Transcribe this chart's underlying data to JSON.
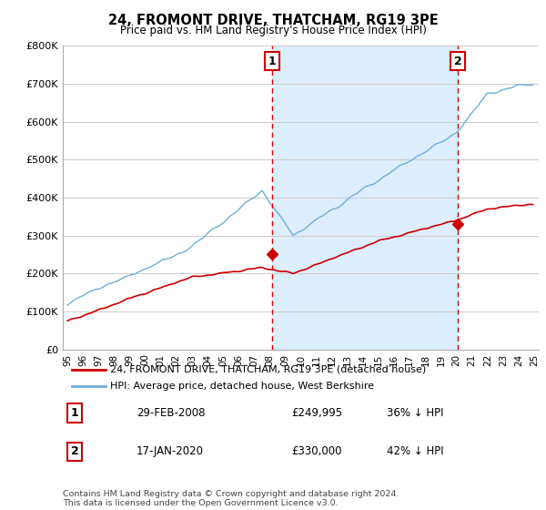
{
  "title": "24, FROMONT DRIVE, THATCHAM, RG19 3PE",
  "subtitle": "Price paid vs. HM Land Registry's House Price Index (HPI)",
  "legend_line1": "24, FROMONT DRIVE, THATCHAM, RG19 3PE (detached house)",
  "legend_line2": "HPI: Average price, detached house, West Berkshire",
  "annotation1_label": "1",
  "annotation1_date": "29-FEB-2008",
  "annotation1_price": "£249,995",
  "annotation1_hpi": "36% ↓ HPI",
  "annotation2_label": "2",
  "annotation2_date": "17-JAN-2020",
  "annotation2_price": "£330,000",
  "annotation2_hpi": "42% ↓ HPI",
  "footer": "Contains HM Land Registry data © Crown copyright and database right 2024.\nThis data is licensed under the Open Government Licence v3.0.",
  "hpi_color": "#6dafd6",
  "price_color": "#cc0000",
  "vline_color": "#cc0000",
  "annotation_box_color": "#cc0000",
  "shade_color": "#ddeeff",
  "ylabel_max": 800000,
  "yticks": [
    0,
    100000,
    200000,
    300000,
    400000,
    500000,
    600000,
    700000,
    800000
  ],
  "year_start": 1995,
  "year_end": 2025,
  "buy1_year": 2008.167,
  "buy1_price": 249995,
  "buy2_year": 2020.083,
  "buy2_price": 330000
}
